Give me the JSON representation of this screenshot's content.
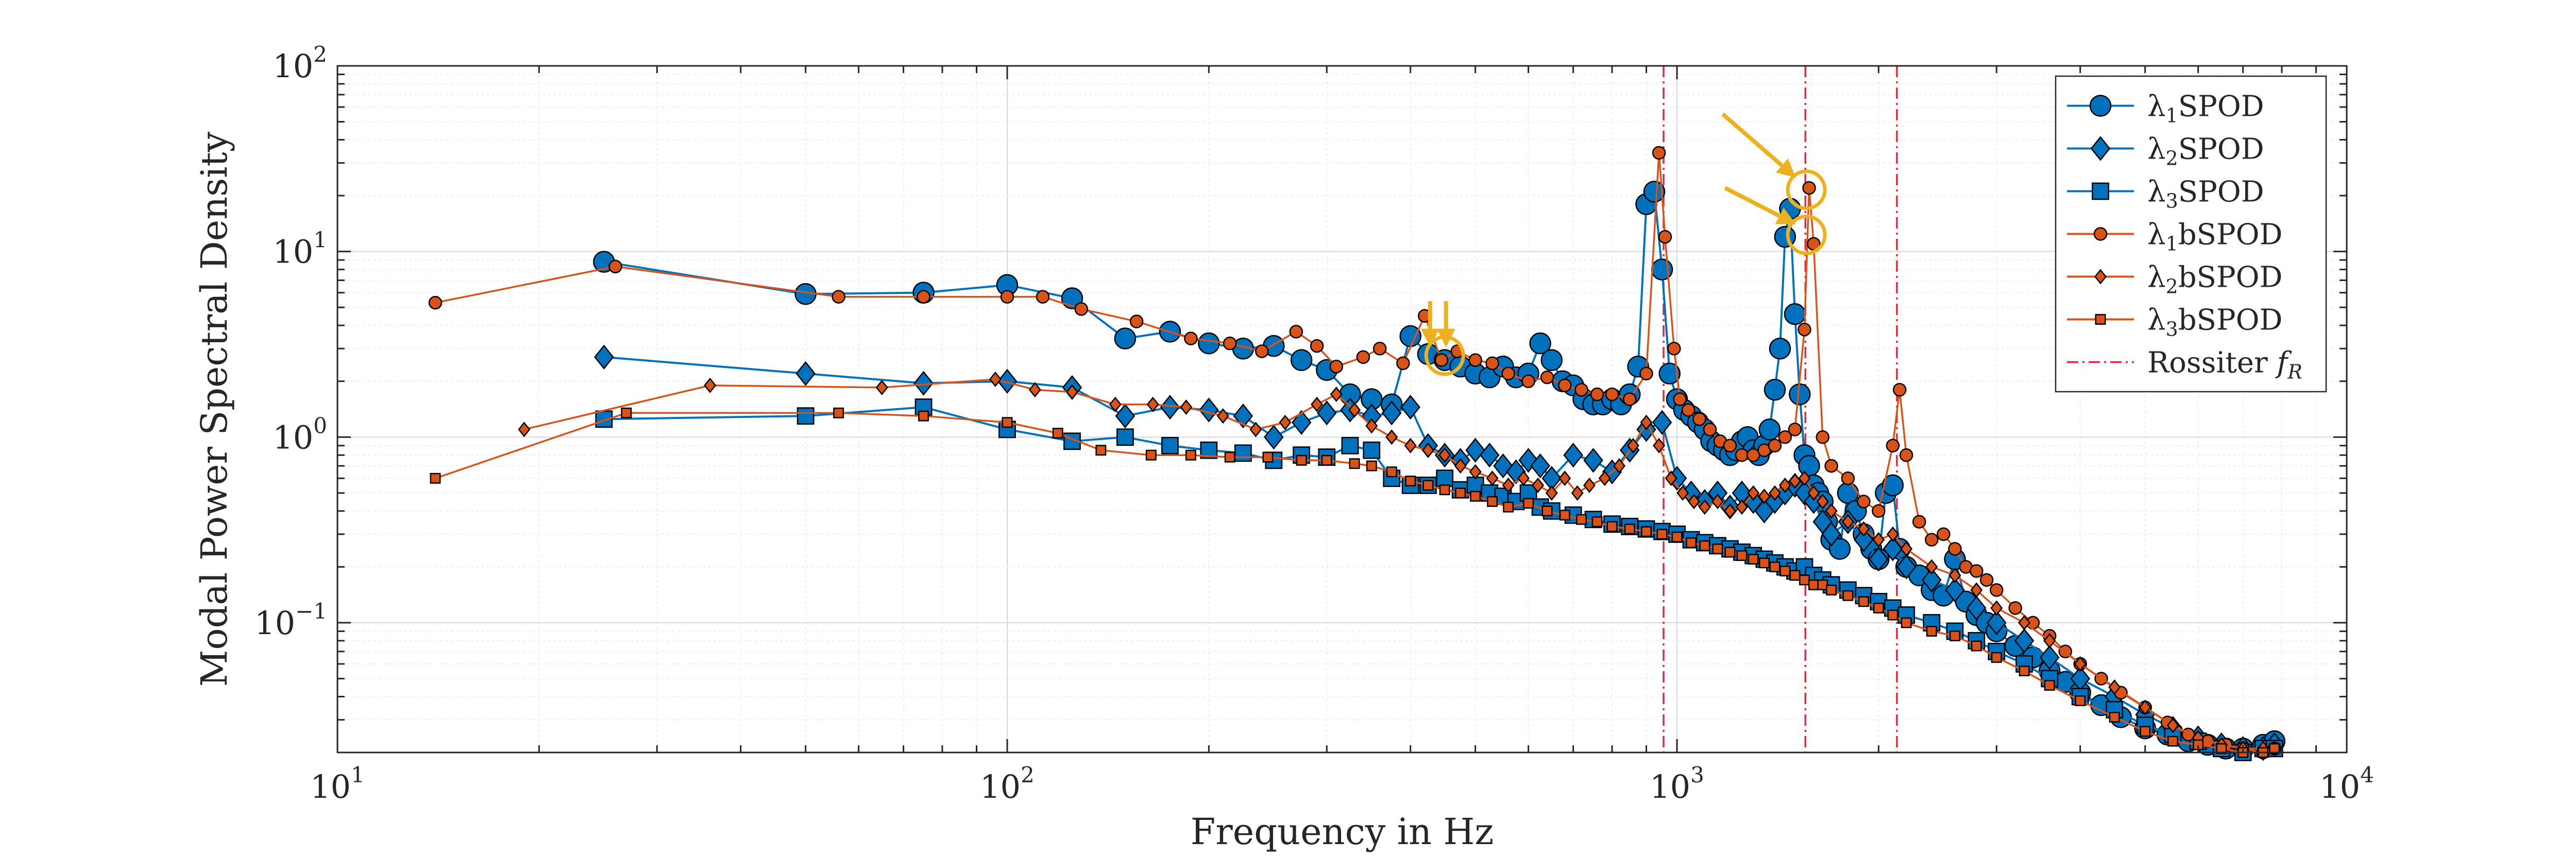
{
  "chart_data": {
    "type": "line",
    "title": "",
    "xlabel": "Frequency in Hz",
    "ylabel": "Modal Power Spectral Density",
    "xscale": "log",
    "yscale": "log",
    "xlim": [
      10,
      10000
    ],
    "ylim": [
      0.02,
      100
    ],
    "grid": true,
    "legend_position": "top-right",
    "x_ticks": [
      {
        "base": "10",
        "exp": "1",
        "value": 10
      },
      {
        "base": "10",
        "exp": "2",
        "value": 100
      },
      {
        "base": "10",
        "exp": "3",
        "value": 1000
      },
      {
        "base": "10",
        "exp": "4",
        "value": 10000
      }
    ],
    "y_ticks": [
      {
        "base": "10",
        "exp": "−1",
        "value": 0.1
      },
      {
        "base": "10",
        "exp": "0",
        "value": 1
      },
      {
        "base": "10",
        "exp": "1",
        "value": 10
      },
      {
        "base": "10",
        "exp": "2",
        "value": 100
      }
    ],
    "series": [
      {
        "name": "SPOD",
        "lambda": "λ",
        "sub": "1",
        "color": "#0072BD",
        "marker": "circle",
        "x": [
          25,
          50,
          75,
          100,
          125,
          150,
          175,
          200,
          225,
          250,
          275,
          300,
          325,
          350,
          375,
          400,
          425,
          450,
          475,
          500,
          525,
          550,
          575,
          600,
          625,
          650,
          675,
          700,
          725,
          750,
          775,
          800,
          825,
          850,
          875,
          900,
          925,
          950,
          975,
          1000,
          1025,
          1050,
          1075,
          1100,
          1125,
          1150,
          1175,
          1200,
          1225,
          1250,
          1275,
          1300,
          1325,
          1350,
          1375,
          1400,
          1425,
          1450,
          1475,
          1500,
          1525,
          1550,
          1575,
          1600,
          1625,
          1650,
          1675,
          1700,
          1750,
          1800,
          1850,
          1900,
          1950,
          2000,
          2050,
          2100,
          2150,
          2200,
          2300,
          2400,
          2500,
          2600,
          2700,
          2800,
          2900,
          3000,
          3200,
          3400,
          3600,
          3800,
          4000,
          4300,
          4600,
          5000,
          5400,
          5800,
          6200,
          6600,
          7000,
          7500,
          7800
        ],
        "y": [
          8.8,
          5.9,
          6.0,
          6.6,
          5.6,
          3.4,
          3.7,
          3.2,
          3.0,
          3.1,
          2.6,
          2.3,
          1.7,
          1.6,
          1.5,
          3.5,
          2.8,
          2.6,
          2.4,
          2.2,
          2.1,
          2.4,
          2.1,
          2.2,
          3.2,
          2.6,
          2.0,
          1.9,
          1.6,
          1.5,
          1.5,
          1.6,
          1.5,
          1.7,
          2.4,
          18,
          21,
          8,
          2.2,
          1.6,
          1.4,
          1.3,
          1.2,
          1.1,
          0.95,
          0.9,
          0.85,
          0.8,
          0.85,
          0.95,
          1.0,
          0.85,
          0.8,
          0.9,
          1.1,
          1.8,
          3.0,
          12,
          17,
          4.6,
          1.7,
          0.8,
          0.7,
          0.55,
          0.5,
          0.45,
          0.35,
          0.28,
          0.25,
          0.5,
          0.4,
          0.3,
          0.25,
          0.22,
          0.5,
          0.55,
          0.25,
          0.2,
          0.18,
          0.15,
          0.14,
          0.22,
          0.13,
          0.11,
          0.1,
          0.09,
          0.075,
          0.065,
          0.055,
          0.048,
          0.042,
          0.036,
          0.031,
          0.027,
          0.025,
          0.023,
          0.022,
          0.021,
          0.021,
          0.022,
          0.023
        ]
      },
      {
        "name": "SPOD",
        "lambda": "λ",
        "sub": "2",
        "color": "#0072BD",
        "marker": "diamond",
        "x": [
          25,
          50,
          75,
          100,
          125,
          150,
          175,
          200,
          225,
          250,
          275,
          300,
          325,
          350,
          375,
          400,
          425,
          450,
          475,
          500,
          525,
          550,
          575,
          600,
          625,
          650,
          700,
          750,
          800,
          850,
          900,
          950,
          1000,
          1050,
          1100,
          1150,
          1200,
          1250,
          1300,
          1350,
          1400,
          1450,
          1500,
          1550,
          1600,
          1650,
          1700,
          1800,
          1900,
          2000,
          2100,
          2200,
          2400,
          2600,
          2800,
          3000,
          3300,
          3600,
          4000,
          4500,
          5000,
          5500,
          6000,
          6500,
          7000,
          7500,
          7800
        ],
        "y": [
          2.7,
          2.2,
          1.95,
          2.0,
          1.85,
          1.3,
          1.45,
          1.4,
          1.3,
          1.0,
          1.2,
          1.35,
          1.4,
          1.3,
          1.35,
          1.45,
          0.9,
          0.8,
          0.75,
          0.85,
          0.8,
          0.7,
          0.65,
          0.75,
          0.7,
          0.6,
          0.8,
          0.75,
          0.65,
          0.85,
          1.1,
          1.2,
          0.6,
          0.5,
          0.45,
          0.5,
          0.42,
          0.5,
          0.45,
          0.4,
          0.45,
          0.5,
          0.55,
          0.5,
          0.45,
          0.35,
          0.3,
          0.35,
          0.28,
          0.22,
          0.25,
          0.2,
          0.17,
          0.15,
          0.12,
          0.1,
          0.08,
          0.065,
          0.05,
          0.04,
          0.032,
          0.027,
          0.024,
          0.022,
          0.021,
          0.021,
          0.022
        ]
      },
      {
        "name": "SPOD",
        "lambda": "λ",
        "sub": "3",
        "color": "#0072BD",
        "marker": "square",
        "x": [
          25,
          50,
          75,
          100,
          125,
          150,
          175,
          200,
          225,
          250,
          275,
          300,
          325,
          350,
          375,
          400,
          425,
          450,
          475,
          500,
          525,
          550,
          575,
          600,
          625,
          650,
          700,
          750,
          800,
          850,
          900,
          950,
          1000,
          1050,
          1100,
          1150,
          1200,
          1250,
          1300,
          1350,
          1400,
          1450,
          1500,
          1550,
          1600,
          1650,
          1700,
          1800,
          1900,
          2000,
          2100,
          2200,
          2400,
          2600,
          2800,
          3000,
          3300,
          3600,
          4000,
          4500,
          5000,
          5500,
          6000,
          6500,
          7000,
          7500,
          7800
        ],
        "y": [
          1.25,
          1.3,
          1.45,
          1.1,
          0.95,
          1.0,
          0.9,
          0.85,
          0.82,
          0.75,
          0.8,
          0.78,
          0.9,
          0.85,
          0.6,
          0.55,
          0.55,
          0.6,
          0.52,
          0.55,
          0.5,
          0.48,
          0.45,
          0.5,
          0.42,
          0.4,
          0.38,
          0.36,
          0.34,
          0.33,
          0.32,
          0.31,
          0.3,
          0.28,
          0.27,
          0.26,
          0.25,
          0.24,
          0.23,
          0.22,
          0.21,
          0.2,
          0.19,
          0.2,
          0.18,
          0.17,
          0.16,
          0.15,
          0.14,
          0.13,
          0.12,
          0.11,
          0.1,
          0.09,
          0.08,
          0.07,
          0.06,
          0.05,
          0.04,
          0.034,
          0.028,
          0.025,
          0.023,
          0.021,
          0.02,
          0.021,
          0.021
        ]
      },
      {
        "name": "bSPOD",
        "lambda": "λ",
        "sub": "1",
        "color": "#D95319",
        "marker": "circle",
        "x": [
          14,
          26,
          56,
          75,
          100,
          113,
          129,
          156,
          188,
          215,
          240,
          270,
          290,
          310,
          340,
          360,
          390,
          420,
          445,
          470,
          500,
          530,
          560,
          600,
          640,
          680,
          720,
          760,
          800,
          850,
          900,
          940,
          960,
          990,
          1010,
          1040,
          1080,
          1120,
          1160,
          1200,
          1250,
          1300,
          1350,
          1400,
          1450,
          1500,
          1550,
          1575,
          1600,
          1650,
          1700,
          1800,
          1900,
          2000,
          2100,
          2150,
          2200,
          2300,
          2400,
          2500,
          2600,
          2700,
          2800,
          2900,
          3000,
          3200,
          3400,
          3600,
          3800,
          4000,
          4300,
          4600,
          5000,
          5400,
          5800,
          6200,
          6600,
          7000,
          7500,
          7800
        ],
        "y": [
          5.3,
          8.3,
          5.7,
          5.7,
          5.7,
          5.7,
          4.9,
          4.2,
          3.4,
          3.2,
          2.9,
          3.7,
          3.1,
          2.4,
          2.7,
          3.0,
          2.5,
          4.5,
          2.6,
          2.9,
          2.6,
          2.5,
          2.2,
          2.0,
          2.1,
          1.9,
          1.8,
          1.7,
          1.7,
          1.6,
          2.2,
          34,
          12,
          3.0,
          1.6,
          1.4,
          1.25,
          1.1,
          0.95,
          0.9,
          0.8,
          0.8,
          0.85,
          0.9,
          1.0,
          1.1,
          3.8,
          22,
          11,
          1.0,
          0.7,
          0.6,
          0.45,
          0.4,
          0.9,
          1.8,
          0.8,
          0.35,
          0.28,
          0.3,
          0.25,
          0.2,
          0.19,
          0.17,
          0.15,
          0.12,
          0.1,
          0.085,
          0.07,
          0.06,
          0.05,
          0.042,
          0.035,
          0.029,
          0.025,
          0.023,
          0.022,
          0.021,
          0.02,
          0.021
        ]
      },
      {
        "name": "bSPOD",
        "lambda": "λ",
        "sub": "2",
        "color": "#D95319",
        "marker": "diamond",
        "x": [
          19,
          36,
          65,
          96,
          110,
          125,
          145,
          165,
          185,
          210,
          235,
          260,
          290,
          310,
          330,
          350,
          375,
          400,
          425,
          450,
          475,
          500,
          530,
          560,
          590,
          620,
          650,
          680,
          710,
          740,
          780,
          820,
          860,
          900,
          940,
          980,
          1020,
          1060,
          1100,
          1150,
          1200,
          1250,
          1300,
          1350,
          1400,
          1450,
          1500,
          1550,
          1600,
          1650,
          1700,
          1800,
          1900,
          2000,
          2100,
          2200,
          2400,
          2600,
          2800,
          3000,
          3300,
          3600,
          4000,
          4500,
          5000,
          5500,
          6000,
          6500,
          7000,
          7500,
          7800
        ],
        "y": [
          1.1,
          1.9,
          1.85,
          2.05,
          1.8,
          1.75,
          1.5,
          1.5,
          1.45,
          1.3,
          1.1,
          1.2,
          1.5,
          1.7,
          1.4,
          1.15,
          1.0,
          0.9,
          0.85,
          0.8,
          0.7,
          0.65,
          0.6,
          0.55,
          0.6,
          0.55,
          0.5,
          0.6,
          0.5,
          0.55,
          0.6,
          0.7,
          0.9,
          1.2,
          0.9,
          0.6,
          0.5,
          0.45,
          0.42,
          0.45,
          0.4,
          0.42,
          0.5,
          0.48,
          0.5,
          0.55,
          0.58,
          0.6,
          0.5,
          0.45,
          0.4,
          0.35,
          0.32,
          0.28,
          0.3,
          0.25,
          0.2,
          0.18,
          0.15,
          0.12,
          0.1,
          0.08,
          0.06,
          0.045,
          0.035,
          0.028,
          0.024,
          0.022,
          0.021,
          0.021,
          0.021
        ]
      },
      {
        "name": "bSPOD",
        "lambda": "λ",
        "sub": "3",
        "color": "#D95319",
        "marker": "square",
        "x": [
          14,
          27,
          56,
          75,
          100,
          119,
          138,
          164,
          188,
          215,
          245,
          275,
          300,
          330,
          350,
          375,
          400,
          425,
          450,
          475,
          500,
          530,
          560,
          600,
          640,
          680,
          720,
          760,
          800,
          850,
          900,
          950,
          1000,
          1050,
          1100,
          1150,
          1200,
          1250,
          1300,
          1350,
          1400,
          1450,
          1500,
          1550,
          1600,
          1650,
          1700,
          1800,
          1900,
          2000,
          2100,
          2200,
          2400,
          2600,
          2800,
          3000,
          3300,
          3600,
          4000,
          4500,
          5000,
          5500,
          6000,
          6500,
          7000,
          7500,
          7800
        ],
        "y": [
          0.6,
          1.35,
          1.35,
          1.3,
          1.2,
          1.05,
          0.85,
          0.8,
          0.8,
          0.78,
          0.78,
          0.75,
          0.75,
          0.72,
          0.7,
          0.65,
          0.58,
          0.55,
          0.52,
          0.5,
          0.48,
          0.45,
          0.42,
          0.44,
          0.4,
          0.38,
          0.36,
          0.35,
          0.33,
          0.32,
          0.31,
          0.3,
          0.29,
          0.27,
          0.26,
          0.25,
          0.24,
          0.23,
          0.22,
          0.21,
          0.2,
          0.19,
          0.18,
          0.17,
          0.16,
          0.16,
          0.15,
          0.14,
          0.13,
          0.12,
          0.11,
          0.1,
          0.09,
          0.085,
          0.075,
          0.065,
          0.055,
          0.046,
          0.038,
          0.031,
          0.026,
          0.023,
          0.022,
          0.021,
          0.02,
          0.02,
          0.021
        ]
      }
    ],
    "rossiter": {
      "label": "Rossiter ",
      "f_base": "f",
      "f_sub": "R",
      "color": "#E8283A",
      "x": [
        955,
        1555,
        2130
      ]
    },
    "annotations": {
      "color": "#EDB120",
      "circles": [
        {
          "x": 450,
          "y": 2.75
        },
        {
          "x": 1560,
          "y": 21.5
        },
        {
          "x": 1560,
          "y": 12.3
        }
      ],
      "arrows": [
        {
          "x1": 428,
          "y1": 5.4,
          "x2": 428,
          "y2": 3.05
        },
        {
          "x1": 452,
          "y1": 5.4,
          "x2": 452,
          "y2": 3.05
        },
        {
          "x1": 1170,
          "y1": 55,
          "x2": 1505,
          "y2": 25
        },
        {
          "x1": 1180,
          "y1": 22,
          "x2": 1505,
          "y2": 14
        }
      ]
    }
  }
}
